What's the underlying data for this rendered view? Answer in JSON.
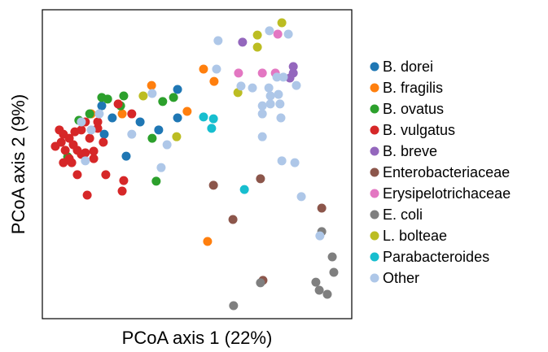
{
  "chart_data": {
    "type": "scatter",
    "xlabel": "PCoA axis 1 (22%)",
    "ylabel": "PCoA axis 2 (9%)",
    "xlim": [
      0,
      100
    ],
    "ylim": [
      0,
      100
    ],
    "grid": false,
    "legend": "right",
    "series": [
      {
        "name": "B. dorei",
        "color": "#1f77b4",
        "x": [
          43.7,
          43.7,
          31.6,
          22.6,
          27.1,
          20.0,
          37.6,
          19.2
        ],
        "values": [
          74.2,
          65.0,
          63.7,
          65.0,
          52.6,
          59.7,
          61.1,
          68.9
        ]
      },
      {
        "name": "B. fragilis",
        "color": "#ff7f0e",
        "x": [
          35.3,
          46.8,
          52.1,
          55.5,
          53.4,
          15.8,
          25.8
        ],
        "values": [
          75.5,
          67.1,
          80.8,
          76.8,
          25.0,
          66.3,
          66.3
        ]
      },
      {
        "name": "B. ovatus",
        "color": "#2ca02c",
        "x": [
          19.2,
          26.3,
          25.3,
          38.9,
          42.4,
          35.5,
          36.8,
          8.2,
          11.8,
          15.3,
          21.1
        ],
        "values": [
          71.6,
          72.1,
          68.9,
          70.3,
          71.6,
          58.4,
          44.5,
          52.4,
          64.2,
          66.3,
          71.1
        ]
      },
      {
        "name": "B. vulgatus",
        "color": "#d62728",
        "x": [
          5.5,
          6.8,
          6.1,
          4.2,
          7.4,
          8.7,
          10.0,
          11.3,
          12.6,
          13.9,
          15.3,
          17.9,
          19.7,
          12.6,
          6.8,
          8.7,
          11.3,
          16.6,
          14.5,
          26.3,
          25.8,
          20.5,
          28.9,
          24.5,
          17.9,
          10.5,
          9.5,
          13.9,
          16.6
        ],
        "values": [
          61.1,
          59.7,
          57.1,
          55.8,
          54.5,
          58.4,
          56.3,
          54.5,
          61.1,
          63.7,
          58.4,
          61.6,
          57.1,
          53.2,
          50.5,
          51.8,
          46.6,
          51.8,
          40.0,
          44.7,
          41.3,
          46.6,
          66.3,
          69.5,
          63.7,
          60.5,
          50.5,
          53.7,
          54.2
        ]
      },
      {
        "name": "B. breve",
        "color": "#9467bd",
        "x": [
          64.7,
          81.1,
          81.1,
          80.0
        ],
        "values": [
          89.5,
          81.6,
          79.5,
          77.9
        ]
      },
      {
        "name": "Enterobacteriaceae",
        "color": "#8c564b",
        "x": [
          55.3,
          70.5,
          61.6,
          90.3,
          71.3
        ],
        "values": [
          43.2,
          45.3,
          32.1,
          35.8,
          12.4
        ]
      },
      {
        "name": "Erysipelotrichaceae",
        "color": "#e377c2",
        "x": [
          76.1,
          63.4,
          71.1,
          75.3
        ],
        "values": [
          92.1,
          79.5,
          79.5,
          79.5
        ]
      },
      {
        "name": "E. coli",
        "color": "#7f7f7f",
        "x": [
          61.8,
          70.5,
          90.3,
          93.7,
          94.2,
          88.4,
          89.5,
          92.1
        ],
        "values": [
          4.2,
          11.6,
          28.2,
          20.0,
          15.0,
          11.8,
          9.2,
          7.9
        ]
      },
      {
        "name": "L. bolteae",
        "color": "#bcbd22",
        "x": [
          77.4,
          69.5,
          69.5,
          63.2,
          43.4,
          32.6
        ],
        "values": [
          95.8,
          91.8,
          87.9,
          73.2,
          58.9,
          72.1
        ]
      },
      {
        "name": "Parabacteroides",
        "color": "#17becf",
        "x": [
          52.1,
          55.3,
          54.7,
          65.3
        ],
        "values": [
          65.3,
          64.7,
          61.6,
          41.8
        ]
      },
      {
        "name": "Other",
        "color": "#aec7e8",
        "x": [
          56.8,
          73.4,
          79.5,
          56.3,
          64.2,
          67.9,
          73.2,
          75.8,
          77.9,
          76.3,
          73.7,
          76.8,
          73.7,
          71.1,
          71.1,
          77.1,
          82.1,
          71.1,
          77.4,
          81.6,
          83.7,
          89.7,
          40.3,
          38.4,
          35.5,
          28.9,
          18.4,
          13.9,
          15.8,
          12.6
        ],
        "values": [
          90.0,
          93.2,
          92.1,
          80.8,
          75.3,
          74.7,
          74.7,
          78.2,
          78.2,
          72.6,
          72.1,
          69.5,
          69.5,
          68.9,
          66.3,
          65.0,
          75.5,
          58.9,
          51.1,
          50.5,
          39.5,
          26.8,
          56.3,
          48.9,
          72.9,
          59.7,
          66.3,
          51.1,
          61.1,
          63.7
        ]
      }
    ]
  }
}
